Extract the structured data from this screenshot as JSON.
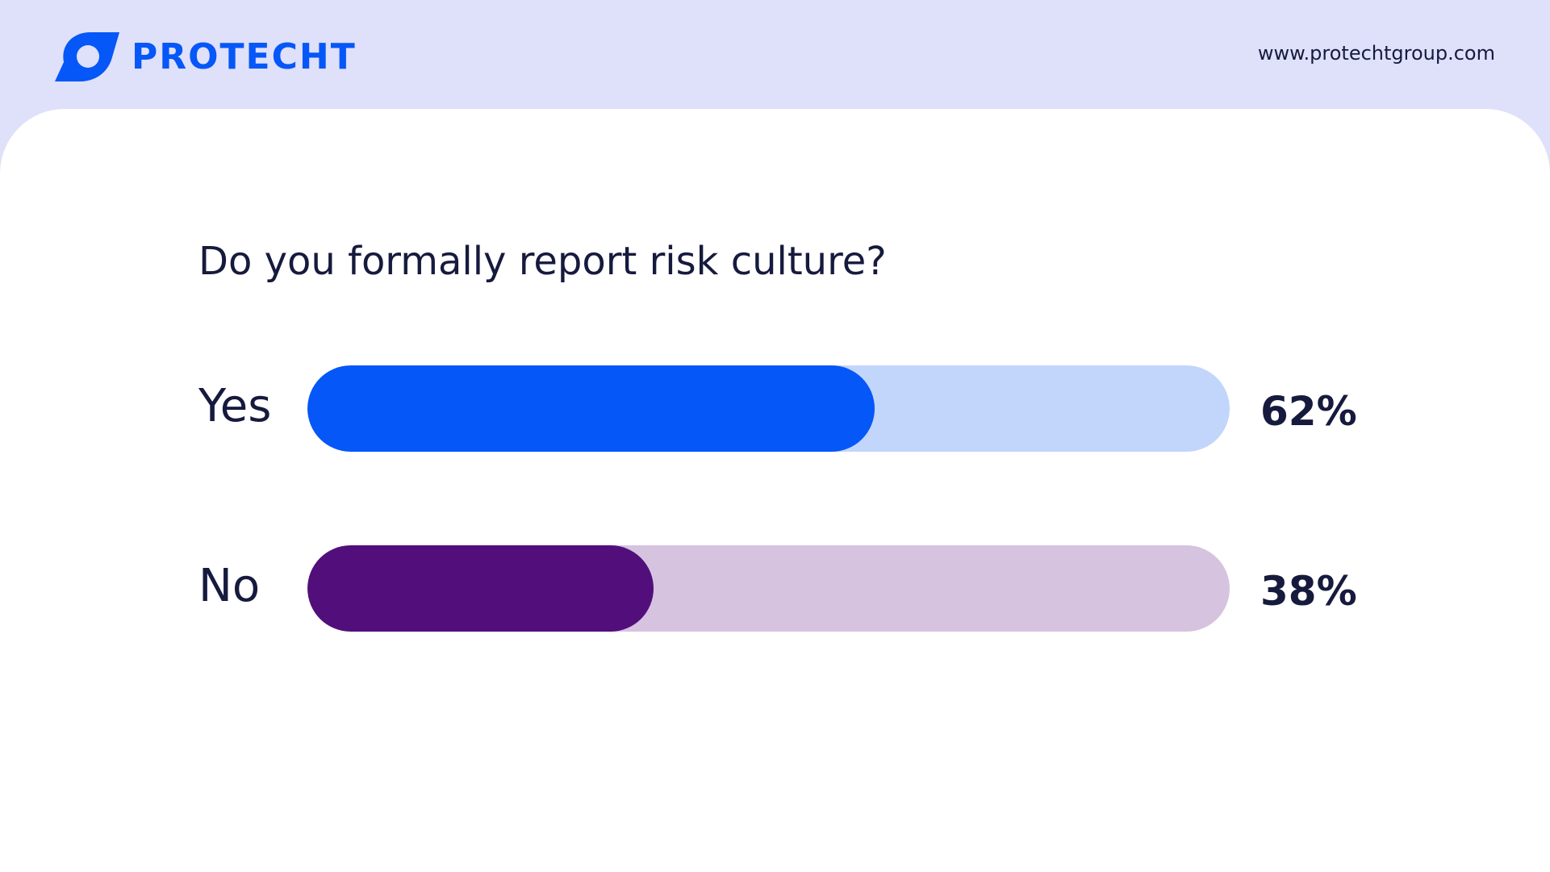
{
  "header": {
    "brand_name": "PROTECHT",
    "website": "www.protechtgroup.com",
    "logo_icon": "protecht-logo-icon",
    "band_color": "#dfe0fa",
    "brand_color": "#0557f7"
  },
  "chart_data": {
    "type": "bar",
    "orientation": "horizontal",
    "title": "Do you formally report risk culture?",
    "categories": [
      "Yes",
      "No"
    ],
    "values": [
      62,
      38
    ],
    "value_labels": [
      "62%",
      "38%"
    ],
    "unit": "%",
    "xlim": [
      0,
      100
    ],
    "grid": false,
    "legend": "none",
    "colors": {
      "Yes": {
        "fill": "#0557f7",
        "track": "#c2d5fb"
      },
      "No": {
        "fill": "#520f7c",
        "track": "#d6c3e0"
      }
    }
  }
}
